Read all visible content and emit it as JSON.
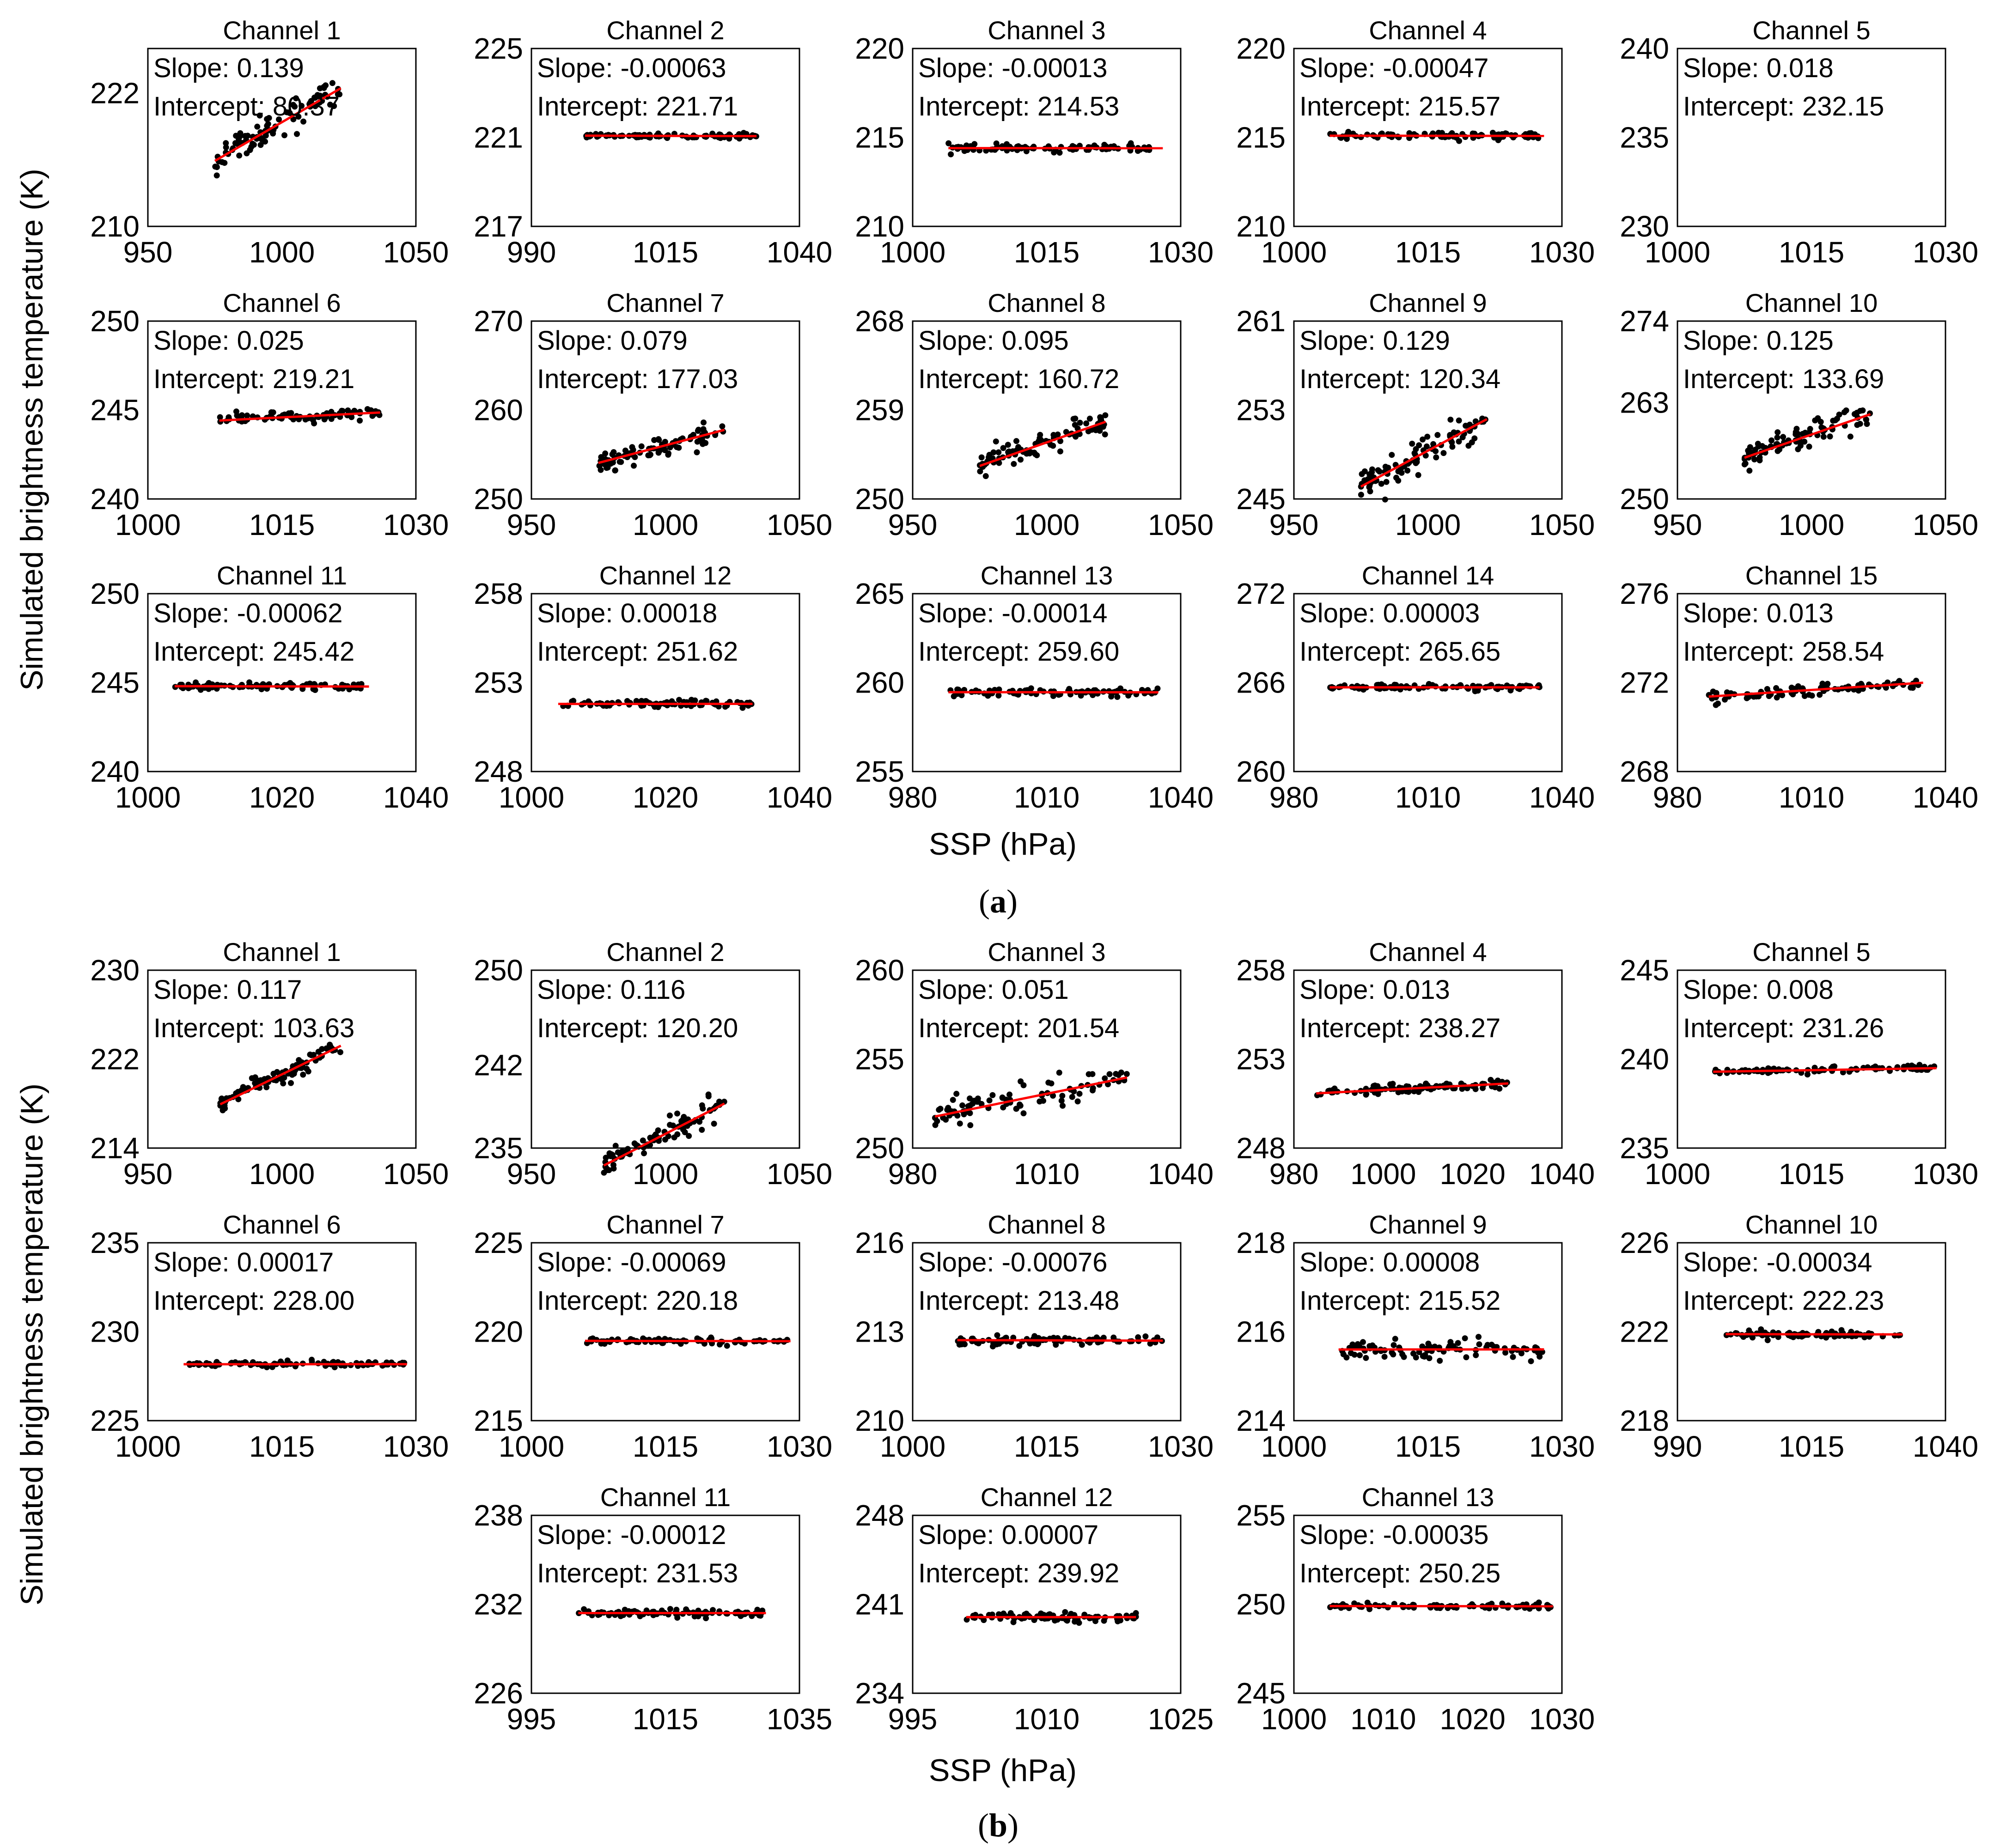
{
  "figure": {
    "ylabel": "Simulated brightness temperature (K)",
    "xlabel": "SSP (hPa)"
  },
  "panels": [
    {
      "label_open": "(",
      "label_letter": "a",
      "label_close": ")"
    },
    {
      "label_open": "(",
      "label_letter": "b",
      "label_close": ")"
    }
  ],
  "colors": {
    "points": "#000000",
    "fit_line": "#ff0000",
    "frame": "#000000"
  },
  "chart_data": [
    {
      "panel": "a",
      "type": "scatter",
      "title": "Channel 1",
      "slope_text": "Slope: 0.139",
      "intercept_text": "Intercept: 80.37",
      "slope": 0.139,
      "intercept": 80.37,
      "xlim": [
        950,
        1050
      ],
      "ylim": [
        210,
        226
      ],
      "xticks": [
        "950",
        "1000",
        "1050"
      ],
      "yticks": [
        "210",
        "222"
      ],
      "ytick_values": [
        210,
        222
      ],
      "x_range": [
        975,
        1022
      ],
      "scatter": 0.7
    },
    {
      "panel": "a",
      "type": "scatter",
      "title": "Channel 2",
      "slope_text": "Slope: -0.00063",
      "intercept_text": "Intercept: 221.71",
      "slope": -0.00063,
      "intercept": 221.71,
      "xlim": [
        990,
        1040
      ],
      "ylim": [
        217,
        225
      ],
      "xticks": [
        "990",
        "1015",
        "1040"
      ],
      "yticks": [
        "217",
        "221",
        "225"
      ],
      "ytick_values": [
        217,
        221,
        225
      ],
      "x_range": [
        1000,
        1032
      ],
      "scatter": 0.05
    },
    {
      "panel": "a",
      "type": "scatter",
      "title": "Channel 3",
      "slope_text": "Slope: -0.00013",
      "intercept_text": "Intercept: 214.53",
      "slope": -0.00013,
      "intercept": 214.53,
      "xlim": [
        1000,
        1030
      ],
      "ylim": [
        210,
        220
      ],
      "xticks": [
        "1000",
        "1015",
        "1030"
      ],
      "yticks": [
        "210",
        "215",
        "220"
      ],
      "ytick_values": [
        210,
        215,
        220
      ],
      "x_range": [
        1004,
        1028
      ],
      "scatter": 0.1
    },
    {
      "panel": "a",
      "type": "scatter",
      "title": "Channel 4",
      "slope_text": "Slope: -0.00047",
      "intercept_text": "Intercept: 215.57",
      "slope": -0.00047,
      "intercept": 215.57,
      "xlim": [
        1000,
        1030
      ],
      "ylim": [
        210,
        220
      ],
      "xticks": [
        "1000",
        "1015",
        "1030"
      ],
      "yticks": [
        "210",
        "215",
        "220"
      ],
      "ytick_values": [
        210,
        215,
        220
      ],
      "x_range": [
        1004,
        1028
      ],
      "scatter": 0.1
    },
    {
      "panel": "a",
      "type": "scatter",
      "title": "Channel 5",
      "slope_text": "Slope: 0.018",
      "intercept_text": "Intercept: 232.15",
      "slope": 0.018,
      "intercept": 232.15,
      "xlim": [
        1000,
        1030
      ],
      "ylim": [
        230,
        240
      ],
      "xticks": [
        "1000",
        "1015",
        "1030"
      ],
      "yticks": [
        "230",
        "235",
        "240"
      ],
      "ytick_values": [
        230,
        235,
        240
      ],
      "x_range": [
        1007,
        1025
      ],
      "scatter": 0.15
    },
    {
      "panel": "a",
      "type": "scatter",
      "title": "Channel 6",
      "slope_text": "Slope: 0.025",
      "intercept_text": "Intercept: 219.21",
      "slope": 0.025,
      "intercept": 219.21,
      "xlim": [
        1000,
        1030
      ],
      "ylim": [
        240,
        250
      ],
      "xticks": [
        "1000",
        "1015",
        "1030"
      ],
      "yticks": [
        "240",
        "245",
        "250"
      ],
      "ytick_values": [
        240,
        245,
        250
      ],
      "x_range": [
        1008,
        1026
      ],
      "scatter": 0.15
    },
    {
      "panel": "a",
      "type": "scatter",
      "title": "Channel 7",
      "slope_text": "Slope: 0.079",
      "intercept_text": "Intercept: 177.03",
      "slope": 0.079,
      "intercept": 177.03,
      "xlim": [
        950,
        1050
      ],
      "ylim": [
        250,
        270
      ],
      "xticks": [
        "950",
        "1000",
        "1050"
      ],
      "yticks": [
        "250",
        "260",
        "270"
      ],
      "ytick_values": [
        250,
        260,
        270
      ],
      "x_range": [
        975,
        1022
      ],
      "scatter": 0.6
    },
    {
      "panel": "a",
      "type": "scatter",
      "title": "Channel 8",
      "slope_text": "Slope: 0.095",
      "intercept_text": "Intercept: 160.72",
      "slope": 0.095,
      "intercept": 160.72,
      "xlim": [
        950,
        1050
      ],
      "ylim": [
        250,
        268
      ],
      "xticks": [
        "950",
        "1000",
        "1050"
      ],
      "yticks": [
        "250",
        "259",
        "268"
      ],
      "ytick_values": [
        250,
        259,
        268
      ],
      "x_range": [
        975,
        1022
      ],
      "scatter": 0.6
    },
    {
      "panel": "a",
      "type": "scatter",
      "title": "Channel 9",
      "slope_text": "Slope: 0.129",
      "intercept_text": "Intercept: 120.34",
      "slope": 0.129,
      "intercept": 120.34,
      "xlim": [
        950,
        1050
      ],
      "ylim": [
        245,
        261
      ],
      "xticks": [
        "950",
        "1000",
        "1050"
      ],
      "yticks": [
        "245",
        "253",
        "261"
      ],
      "ytick_values": [
        245,
        253,
        261
      ],
      "x_range": [
        975,
        1022
      ],
      "scatter": 0.8
    },
    {
      "panel": "a",
      "type": "scatter",
      "title": "Channel 10",
      "slope_text": "Slope: 0.125",
      "intercept_text": "Intercept: 133.69",
      "slope": 0.125,
      "intercept": 133.69,
      "xlim": [
        950,
        1050
      ],
      "ylim": [
        250,
        274
      ],
      "xticks": [
        "950",
        "1000",
        "1050"
      ],
      "yticks": [
        "250",
        "263",
        "274"
      ],
      "ytick_values": [
        250,
        263,
        274
      ],
      "x_range": [
        975,
        1022
      ],
      "scatter": 0.8
    },
    {
      "panel": "a",
      "type": "scatter",
      "title": "Channel 11",
      "slope_text": "Slope: -0.00062",
      "intercept_text": "Intercept: 245.42",
      "slope": -0.00062,
      "intercept": 245.42,
      "xlim": [
        1000,
        1040
      ],
      "ylim": [
        240,
        250
      ],
      "xticks": [
        "1000",
        "1020",
        "1040"
      ],
      "yticks": [
        "240",
        "245",
        "250"
      ],
      "ytick_values": [
        240,
        245,
        250
      ],
      "x_range": [
        1004,
        1033
      ],
      "scatter": 0.1
    },
    {
      "panel": "a",
      "type": "scatter",
      "title": "Channel 12",
      "slope_text": "Slope: 0.00018",
      "intercept_text": "Intercept: 251.62",
      "slope": 0.00018,
      "intercept": 251.62,
      "xlim": [
        1000,
        1040
      ],
      "ylim": [
        248,
        258
      ],
      "xticks": [
        "1000",
        "1020",
        "1040"
      ],
      "yticks": [
        "248",
        "253",
        "258"
      ],
      "ytick_values": [
        248,
        253,
        258
      ],
      "x_range": [
        1004,
        1033
      ],
      "scatter": 0.1
    },
    {
      "panel": "a",
      "type": "scatter",
      "title": "Channel 13",
      "slope_text": "Slope: -0.00014",
      "intercept_text": "Intercept: 259.60",
      "slope": -0.00014,
      "intercept": 259.6,
      "xlim": [
        980,
        1040
      ],
      "ylim": [
        255,
        265
      ],
      "xticks": [
        "980",
        "1010",
        "1040"
      ],
      "yticks": [
        "255",
        "260",
        "265"
      ],
      "ytick_values": [
        255,
        260,
        265
      ],
      "x_range": [
        988,
        1035
      ],
      "scatter": 0.1
    },
    {
      "panel": "a",
      "type": "scatter",
      "title": "Channel 14",
      "slope_text": "Slope: 0.00003",
      "intercept_text": "Intercept: 265.65",
      "slope": 3e-05,
      "intercept": 265.65,
      "xlim": [
        980,
        1040
      ],
      "ylim": [
        260,
        272
      ],
      "xticks": [
        "980",
        "1010",
        "1040"
      ],
      "yticks": [
        "260",
        "266",
        "272"
      ],
      "ytick_values": [
        260,
        266,
        272
      ],
      "x_range": [
        988,
        1035
      ],
      "scatter": 0.1
    },
    {
      "panel": "a",
      "type": "scatter",
      "title": "Channel 15",
      "slope_text": "Slope: 0.013",
      "intercept_text": "Intercept: 258.54",
      "slope": 0.013,
      "intercept": 258.54,
      "xlim": [
        980,
        1040
      ],
      "ylim": [
        268,
        276
      ],
      "xticks": [
        "980",
        "1010",
        "1040"
      ],
      "yticks": [
        "268",
        "272",
        "276"
      ],
      "ytick_values": [
        268,
        272,
        276
      ],
      "x_range": [
        987,
        1035
      ],
      "scatter": 0.12
    },
    {
      "panel": "b",
      "type": "scatter",
      "title": "Channel 1",
      "slope_text": "Slope: 0.117",
      "intercept_text": "Intercept: 103.63",
      "slope": 0.117,
      "intercept": 103.63,
      "xlim": [
        950,
        1050
      ],
      "ylim": [
        214,
        230
      ],
      "xticks": [
        "950",
        "1000",
        "1050"
      ],
      "yticks": [
        "214",
        "222",
        "230"
      ],
      "ytick_values": [
        214,
        222,
        230
      ],
      "x_range": [
        977,
        1022
      ],
      "scatter": 0.4
    },
    {
      "panel": "b",
      "type": "scatter",
      "title": "Channel 2",
      "slope_text": "Slope: 0.116",
      "intercept_text": "Intercept: 120.20",
      "slope": 0.116,
      "intercept": 120.2,
      "xlim": [
        950,
        1050
      ],
      "ylim": [
        235,
        250
      ],
      "xticks": [
        "950",
        "1000",
        "1050"
      ],
      "yticks": [
        "235",
        "242",
        "250"
      ],
      "ytick_values": [
        235,
        242,
        250
      ],
      "x_range": [
        977,
        1022
      ],
      "scatter": 0.5
    },
    {
      "panel": "b",
      "type": "scatter",
      "title": "Channel 3",
      "slope_text": "Slope: 0.051",
      "intercept_text": "Intercept: 201.54",
      "slope": 0.051,
      "intercept": 201.54,
      "xlim": [
        980,
        1040
      ],
      "ylim": [
        250,
        260
      ],
      "xticks": [
        "980",
        "1010",
        "1040"
      ],
      "yticks": [
        "250",
        "255",
        "260"
      ],
      "ytick_values": [
        250,
        255,
        260
      ],
      "x_range": [
        985,
        1028
      ],
      "scatter": 0.4
    },
    {
      "panel": "b",
      "type": "scatter",
      "title": "Channel 4",
      "slope_text": "Slope: 0.013",
      "intercept_text": "Intercept: 238.27",
      "slope": 0.013,
      "intercept": 238.27,
      "xlim": [
        980,
        1040
      ],
      "ylim": [
        248,
        258
      ],
      "xticks": [
        "980",
        "1000",
        "1020",
        "1040"
      ],
      "yticks": [
        "248",
        "253",
        "258"
      ],
      "ytick_values": [
        248,
        253,
        258
      ],
      "x_range": [
        985,
        1028
      ],
      "scatter": 0.15
    },
    {
      "panel": "b",
      "type": "scatter",
      "title": "Channel 5",
      "slope_text": "Slope: 0.008",
      "intercept_text": "Intercept: 231.26",
      "slope": 0.008,
      "intercept": 231.26,
      "xlim": [
        1000,
        1030
      ],
      "ylim": [
        235,
        245
      ],
      "xticks": [
        "1000",
        "1015",
        "1030"
      ],
      "yticks": [
        "235",
        "240",
        "245"
      ],
      "ytick_values": [
        235,
        240,
        245
      ],
      "x_range": [
        1004,
        1029
      ],
      "scatter": 0.08
    },
    {
      "panel": "b",
      "type": "scatter",
      "title": "Channel 6",
      "slope_text": "Slope: 0.00017",
      "intercept_text": "Intercept: 228.00",
      "slope": 0.00017,
      "intercept": 228.0,
      "xlim": [
        1000,
        1030
      ],
      "ylim": [
        225,
        235
      ],
      "xticks": [
        "1000",
        "1015",
        "1030"
      ],
      "yticks": [
        "225",
        "230",
        "235"
      ],
      "ytick_values": [
        225,
        230,
        235
      ],
      "x_range": [
        1004,
        1029
      ],
      "scatter": 0.08
    },
    {
      "panel": "b",
      "type": "scatter",
      "title": "Channel 7",
      "slope_text": "Slope: -0.00069",
      "intercept_text": "Intercept: 220.18",
      "slope": -0.00069,
      "intercept": 220.18,
      "xlim": [
        1000,
        1030
      ],
      "ylim": [
        215,
        225
      ],
      "xticks": [
        "1000",
        "1015",
        "1030"
      ],
      "yticks": [
        "215",
        "220",
        "225"
      ],
      "ytick_values": [
        215,
        220,
        225
      ],
      "x_range": [
        1006,
        1029
      ],
      "scatter": 0.08
    },
    {
      "panel": "b",
      "type": "scatter",
      "title": "Channel 8",
      "slope_text": "Slope: -0.00076",
      "intercept_text": "Intercept: 213.48",
      "slope": -0.00076,
      "intercept": 213.48,
      "xlim": [
        1000,
        1030
      ],
      "ylim": [
        210,
        216
      ],
      "xticks": [
        "1000",
        "1015",
        "1030"
      ],
      "yticks": [
        "210",
        "213",
        "216"
      ],
      "ytick_values": [
        210,
        213,
        216
      ],
      "x_range": [
        1005,
        1028
      ],
      "scatter": 0.08
    },
    {
      "panel": "b",
      "type": "scatter",
      "title": "Channel 9",
      "slope_text": "Slope: 0.00008",
      "intercept_text": "Intercept: 215.52",
      "slope": 8e-05,
      "intercept": 215.52,
      "xlim": [
        1000,
        1030
      ],
      "ylim": [
        214,
        218
      ],
      "xticks": [
        "1000",
        "1015",
        "1030"
      ],
      "yticks": [
        "214",
        "216",
        "218"
      ],
      "ytick_values": [
        214,
        216,
        218
      ],
      "x_range": [
        1005,
        1028
      ],
      "scatter": 0.1
    },
    {
      "panel": "b",
      "type": "scatter",
      "title": "Channel 10",
      "slope_text": "Slope: -0.00034",
      "intercept_text": "Intercept: 222.23",
      "slope": -0.00034,
      "intercept": 222.23,
      "xlim": [
        990,
        1040
      ],
      "ylim": [
        218,
        226
      ],
      "xticks": [
        "990",
        "1015",
        "1040"
      ],
      "yticks": [
        "218",
        "222",
        "226"
      ],
      "ytick_values": [
        218,
        222,
        226
      ],
      "x_range": [
        999,
        1032
      ],
      "scatter": 0.08
    },
    {
      "panel": "b",
      "type": "scatter",
      "title": "Channel 11",
      "slope_text": "Slope: -0.00012",
      "intercept_text": "Intercept: 231.53",
      "slope": -0.00012,
      "intercept": 231.53,
      "xlim": [
        995,
        1035
      ],
      "ylim": [
        226,
        238
      ],
      "xticks": [
        "995",
        "1015",
        "1035"
      ],
      "yticks": [
        "226",
        "232",
        "238"
      ],
      "ytick_values": [
        226,
        232,
        238
      ],
      "x_range": [
        1002,
        1030
      ],
      "scatter": 0.15
    },
    {
      "panel": "b",
      "type": "scatter",
      "title": "Channel 12",
      "slope_text": "Slope: 0.00007",
      "intercept_text": "Intercept: 239.92",
      "slope": 7e-05,
      "intercept": 239.92,
      "xlim": [
        995,
        1025
      ],
      "ylim": [
        234,
        248
      ],
      "xticks": [
        "995",
        "1010",
        "1025"
      ],
      "yticks": [
        "234",
        "241",
        "248"
      ],
      "ytick_values": [
        234,
        241,
        248
      ],
      "x_range": [
        1001,
        1020
      ],
      "scatter": 0.15
    },
    {
      "panel": "b",
      "type": "scatter",
      "title": "Channel 13",
      "slope_text": "Slope: -0.00035",
      "intercept_text": "Intercept: 250.25",
      "slope": -0.00035,
      "intercept": 250.25,
      "xlim": [
        1000,
        1030
      ],
      "ylim": [
        245,
        255
      ],
      "xticks": [
        "1000",
        "1010",
        "1020",
        "1030"
      ],
      "yticks": [
        "245",
        "250",
        "255"
      ],
      "ytick_values": [
        245,
        250,
        255
      ],
      "x_range": [
        1004,
        1029
      ],
      "scatter": 0.08
    }
  ]
}
